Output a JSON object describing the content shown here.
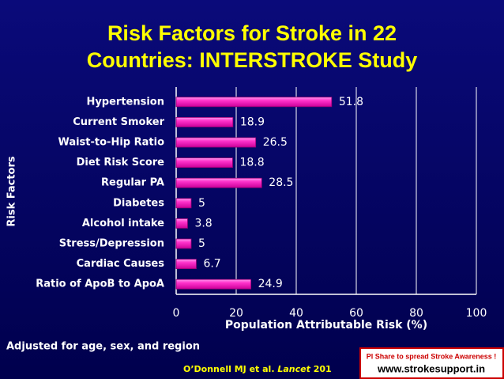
{
  "chart_data": {
    "type": "barh",
    "title": [
      "Risk Factors for Stroke in 22",
      "Countries: INTERSTROKE Study"
    ],
    "categories": [
      "Hypertension",
      "Current Smoker",
      "Waist-to-Hip Ratio",
      "Diet Risk Score",
      "Regular PA",
      "Diabetes",
      "Alcohol intake",
      "Stress/Depression",
      "Cardiac Causes",
      "Ratio of ApoB to ApoA"
    ],
    "values": [
      51.8,
      18.9,
      26.5,
      18.8,
      28.5,
      5,
      3.8,
      5,
      6.7,
      24.9
    ],
    "color": "#ff33cc",
    "xlim": [
      0,
      100
    ],
    "xticks": [
      0,
      20,
      40,
      60,
      80,
      100
    ],
    "grid": true,
    "xlabel": "Population Attributable Risk (%)",
    "ylabel": "Risk Factors"
  },
  "footnote": "Adjusted for age, sex, and region",
  "citation": {
    "authors": "O’Donnell MJ et al.",
    "journal": "Lancet",
    "year": "201"
  },
  "banner": {
    "line1": "Pl Share to spread Stroke Awareness !",
    "line2": "www.strokesupport.in"
  }
}
